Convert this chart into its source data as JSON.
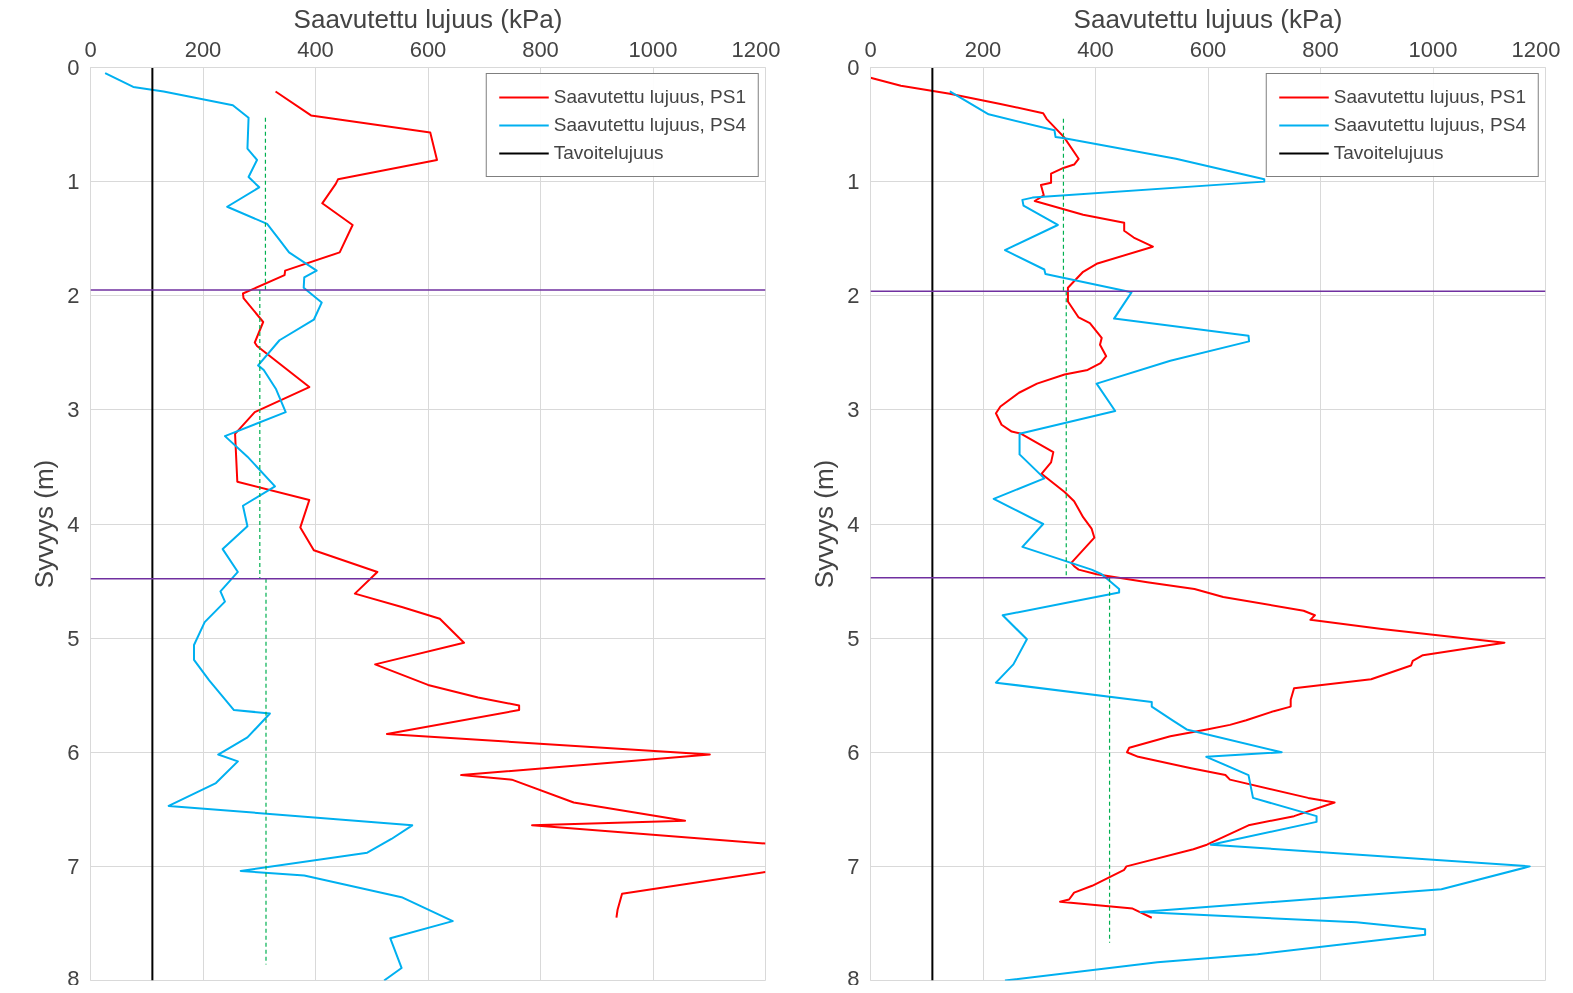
{
  "chart_data": [
    {
      "type": "line",
      "xlabel": "Saavutettu lujuus (kPa)",
      "ylabel": "Syvyys (m)",
      "xlim": [
        0,
        1200
      ],
      "xticks": [
        0,
        200,
        400,
        600,
        800,
        1000,
        1200
      ],
      "ylim": [
        8,
        0
      ],
      "yticks": [
        0,
        1,
        2,
        3,
        4,
        5,
        6,
        7,
        8
      ],
      "grid": true,
      "legend": "top right",
      "ref_lines": [
        {
          "axis": "y",
          "value": 1.95,
          "color": "#7030a0"
        },
        {
          "axis": "y",
          "value": 4.48,
          "color": "#7030a0"
        }
      ],
      "series": [
        {
          "name": "Saavutettu lujuus, PS1",
          "color": "#ff0000",
          "x": [
            329,
            392,
            604,
            616,
            440,
            436,
            412,
            466,
            443,
            346,
            345,
            271,
            272,
            307,
            292,
            296,
            389,
            292,
            257,
            261,
            389,
            373,
            397,
            510,
            470,
            555,
            621,
            664,
            506,
            600,
            689,
            762,
            762,
            527,
            1101,
            659,
            749,
            859,
            1057,
            785,
            1200,
            null,
            1200,
            945,
            937,
            935
          ],
          "values": [
            0.21,
            0.42,
            0.57,
            0.81,
            0.98,
            1.02,
            1.19,
            1.38,
            1.62,
            1.78,
            1.82,
            1.98,
            2.02,
            2.23,
            2.41,
            2.44,
            2.8,
            3.02,
            3.21,
            3.63,
            3.79,
            4.03,
            4.23,
            4.42,
            4.61,
            4.73,
            4.83,
            5.04,
            5.23,
            5.41,
            5.52,
            5.59,
            5.63,
            5.84,
            6.02,
            6.2,
            6.24,
            6.44,
            6.6,
            6.64,
            6.8,
            null,
            7.05,
            7.24,
            7.38,
            7.45
          ]
        },
        {
          "name": "Saavutettu lujuus, PS4",
          "color": "#00b0f0",
          "x": [
            26,
            76,
            130,
            253,
            281,
            279,
            296,
            281,
            300,
            243,
            314,
            336,
            353,
            402,
            380,
            379,
            411,
            397,
            336,
            298,
            308,
            330,
            347,
            239,
            279,
            328,
            271,
            279,
            235,
            262,
            231,
            239,
            203,
            184,
            184,
            211,
            255,
            319,
            279,
            227,
            262,
            223,
            139,
            572,
            535,
            492,
            267,
            380,
            553,
            644,
            533,
            553,
            522
          ],
          "values": [
            0.05,
            0.17,
            0.21,
            0.33,
            0.44,
            0.71,
            0.81,
            0.96,
            1.05,
            1.22,
            1.37,
            1.51,
            1.62,
            1.78,
            1.84,
            1.93,
            2.06,
            2.21,
            2.39,
            2.61,
            2.65,
            2.82,
            3.02,
            3.23,
            3.41,
            3.67,
            3.84,
            4.02,
            4.22,
            4.42,
            4.59,
            4.68,
            4.86,
            5.06,
            5.19,
            5.37,
            5.63,
            5.66,
            5.87,
            6.02,
            6.08,
            6.27,
            6.47,
            6.64,
            6.76,
            6.88,
            7.04,
            7.08,
            7.27,
            7.48,
            7.63,
            7.89,
            8.0
          ]
        },
        {
          "name": "Tavoitelujuus",
          "color": "#000000",
          "x": [
            110,
            110
          ],
          "values": [
            0,
            8
          ]
        },
        {
          "color": "#00b050",
          "line_style": "dashed",
          "x": [
            311,
            311
          ],
          "values": [
            0.44,
            1.95
          ]
        },
        {
          "color": "#00b050",
          "line_style": "dashed",
          "x": [
            301,
            301
          ],
          "values": [
            1.95,
            4.48
          ]
        },
        {
          "color": "#00b050",
          "line_style": "dashed",
          "x": [
            312,
            312
          ],
          "values": [
            4.48,
            7.86
          ]
        }
      ]
    },
    {
      "type": "line",
      "xlabel": "Saavutettu lujuus (kPa)",
      "ylabel": "Syvyys (m)",
      "xlim": [
        0,
        1200
      ],
      "xticks": [
        0,
        200,
        400,
        600,
        800,
        1000,
        1200
      ],
      "ylim": [
        8,
        0
      ],
      "yticks": [
        0,
        1,
        2,
        3,
        4,
        5,
        6,
        7,
        8
      ],
      "grid": true,
      "legend": "top right",
      "ref_lines": [
        {
          "axis": "y",
          "value": 1.96,
          "color": "#7030a0"
        },
        {
          "axis": "y",
          "value": 4.47,
          "color": "#7030a0"
        }
      ],
      "series": [
        {
          "name": "Saavutettu lujuus, PS1",
          "color": "#ff0000",
          "x": [
            0,
            54,
            141,
            231,
            307,
            313,
            344,
            370,
            362,
            343,
            321,
            321,
            303,
            308,
            292,
            378,
            451,
            451,
            468,
            502,
            402,
            378,
            351,
            351,
            370,
            390,
            411,
            408,
            419,
            409,
            386,
            345,
            296,
            264,
            231,
            223,
            233,
            251,
            268,
            325,
            321,
            304,
            345,
            362,
            378,
            393,
            398,
            357,
            362,
            370,
            402,
            492,
            576,
            627,
            770,
            790,
            782,
            909,
            1127,
            982,
            964,
            961,
            890,
            753,
            747,
            747,
            717,
            668,
            639,
            598,
            533,
            460,
            456,
            476,
            570,
            631,
            639,
            778,
            825,
            753,
            672,
            598,
            574,
            455,
            451,
            394,
            362,
            353,
            337,
            466,
            500
          ],
          "values": [
            0.09,
            0.16,
            0.23,
            0.32,
            0.4,
            0.45,
            0.61,
            0.8,
            0.85,
            0.88,
            0.93,
            1.01,
            1.03,
            1.12,
            1.17,
            1.29,
            1.36,
            1.43,
            1.49,
            1.57,
            1.72,
            1.79,
            1.93,
            2.05,
            2.19,
            2.24,
            2.37,
            2.43,
            2.53,
            2.59,
            2.65,
            2.69,
            2.77,
            2.85,
            2.97,
            3.03,
            3.13,
            3.19,
            3.21,
            3.37,
            3.46,
            3.56,
            3.72,
            3.8,
            3.94,
            4.04,
            4.12,
            4.34,
            4.37,
            4.4,
            4.44,
            4.51,
            4.57,
            4.64,
            4.76,
            4.8,
            4.84,
            4.92,
            5.04,
            5.15,
            5.2,
            5.24,
            5.36,
            5.44,
            5.54,
            5.6,
            5.64,
            5.72,
            5.76,
            5.8,
            5.86,
            5.96,
            6.0,
            6.04,
            6.14,
            6.2,
            6.24,
            6.4,
            6.44,
            6.56,
            6.64,
            6.81,
            6.85,
            7.0,
            7.03,
            7.17,
            7.23,
            7.29,
            7.31,
            7.37,
            7.45
          ]
        },
        {
          "name": "Saavutettu lujuus, PS4",
          "color": "#00b0f0",
          "x": [
            141,
            210,
            327,
            329,
            345,
            543,
            700,
            700,
            288,
            270,
            272,
            333,
            239,
            309,
            311,
            464,
            433,
            672,
            673,
            533,
            402,
            435,
            265,
            265,
            309,
            219,
            307,
            270,
            393,
            411,
            442,
            442,
            360,
            235,
            278,
            254,
            223,
            500,
            500,
            537,
            562,
            731,
            597,
            672,
            680,
            793,
            793,
            605,
            1172,
            1015,
            480,
            864,
            986,
            986,
            688,
            510,
            239
          ],
          "values": [
            0.21,
            0.41,
            0.55,
            0.61,
            0.62,
            0.8,
            0.98,
            1.0,
            1.14,
            1.16,
            1.21,
            1.38,
            1.6,
            1.77,
            1.81,
            1.97,
            2.2,
            2.35,
            2.4,
            2.57,
            2.77,
            3.01,
            3.21,
            3.39,
            3.6,
            3.78,
            4.0,
            4.2,
            4.4,
            4.44,
            4.57,
            4.6,
            4.68,
            4.8,
            5.01,
            5.23,
            5.39,
            5.56,
            5.6,
            5.72,
            5.8,
            6.0,
            6.04,
            6.2,
            6.4,
            6.56,
            6.61,
            6.81,
            7.0,
            7.2,
            7.4,
            7.49,
            7.55,
            7.6,
            7.77,
            7.84,
            8.0
          ]
        },
        {
          "name": "Tavoitelujuus",
          "color": "#000000",
          "x": [
            110,
            110
          ],
          "values": [
            0,
            8
          ]
        },
        {
          "color": "#00b050",
          "line_style": "dashed",
          "x": [
            343,
            343
          ],
          "values": [
            0.45,
            1.96
          ]
        },
        {
          "color": "#00b050",
          "line_style": "dashed",
          "x": [
            348,
            348
          ],
          "values": [
            1.96,
            4.47
          ]
        },
        {
          "color": "#00b050",
          "line_style": "dashed",
          "x": [
            425,
            425
          ],
          "values": [
            4.47,
            7.67
          ]
        }
      ]
    }
  ]
}
